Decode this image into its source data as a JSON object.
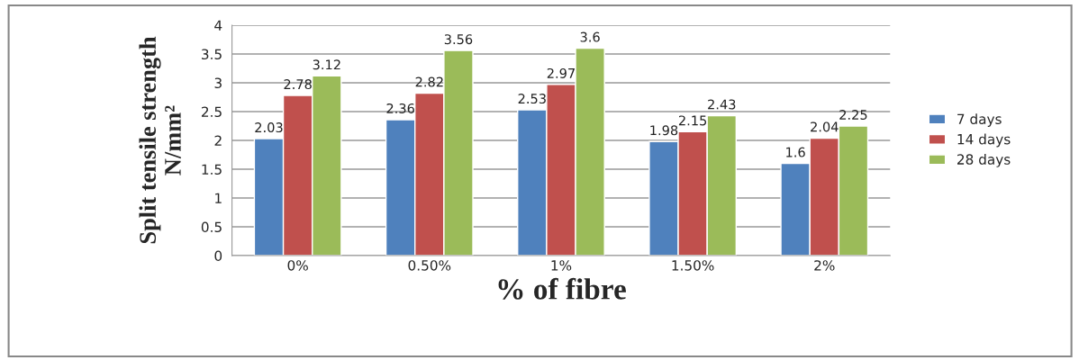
{
  "chart_data": {
    "type": "bar",
    "xlabel": "% of fibre",
    "ylabel": "Split tensile strength\nN/mm²",
    "categories": [
      "0%",
      "0.50%",
      "1%",
      "1.50%",
      "2%"
    ],
    "series": [
      {
        "name": "7 days",
        "color": "#4f81bd",
        "values": [
          2.03,
          2.36,
          2.53,
          1.98,
          1.6
        ]
      },
      {
        "name": "14 days",
        "color": "#c0504d",
        "values": [
          2.78,
          2.82,
          2.97,
          2.15,
          2.04
        ]
      },
      {
        "name": "28 days",
        "color": "#9bbb59",
        "values": [
          3.12,
          3.56,
          3.6,
          2.43,
          2.25
        ]
      }
    ],
    "ylim": [
      0,
      4
    ],
    "yticks": [
      0,
      0.5,
      1,
      1.5,
      2,
      2.5,
      3,
      3.5,
      4
    ],
    "grid": "y",
    "legend": "right",
    "data_labels": true
  }
}
